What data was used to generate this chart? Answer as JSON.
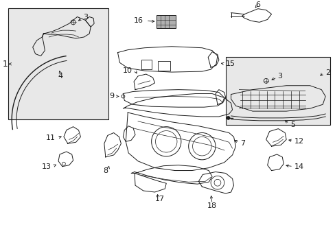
{
  "bg_color": "#ffffff",
  "line_color": "#1a1a1a",
  "shade_color": "#e8e8e8",
  "fig_width": 4.89,
  "fig_height": 3.6,
  "dpi": 100
}
